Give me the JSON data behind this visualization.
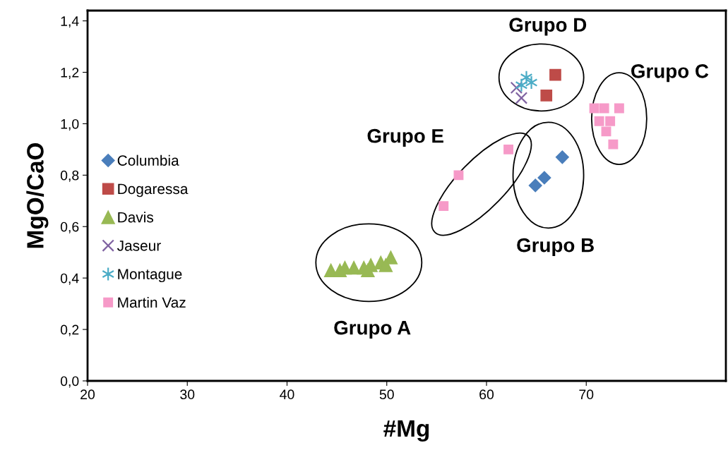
{
  "chart_data": {
    "type": "scatter",
    "xlabel": "#Mg",
    "ylabel": "MgO/CaO",
    "xlim": [
      20,
      84
    ],
    "ylim": [
      0,
      1.44
    ],
    "xticks": [
      20,
      30,
      40,
      50,
      60,
      70
    ],
    "yticks": [
      {
        "value": 0,
        "label": "0,0"
      },
      {
        "value": 0.2,
        "label": "0,2"
      },
      {
        "value": 0.4,
        "label": "0,4"
      },
      {
        "value": 0.6,
        "label": "0,6"
      },
      {
        "value": 0.8,
        "label": "0,8"
      },
      {
        "value": 1.0,
        "label": "1,0"
      },
      {
        "value": 1.2,
        "label": "1,2"
      },
      {
        "value": 1.4,
        "label": "1,4"
      }
    ],
    "grid": false,
    "legend": "left",
    "series": [
      {
        "name": "Columbia",
        "color": "#4a7ebb",
        "marker": "diamond",
        "x": [
          64.9,
          65.8,
          67.6
        ],
        "values": [
          0.76,
          0.79,
          0.87
        ]
      },
      {
        "name": "Dogaressa",
        "color": "#be4b48",
        "marker": "square",
        "x": [
          66.9,
          66.0
        ],
        "values": [
          1.19,
          1.11
        ]
      },
      {
        "name": "Davis",
        "color": "#98b954",
        "marker": "triangle",
        "x": [
          44.4,
          45.3,
          45.8,
          46.7,
          47.7,
          48.4,
          49.4,
          50.4,
          48.1,
          49.9
        ],
        "values": [
          0.43,
          0.43,
          0.44,
          0.44,
          0.44,
          0.45,
          0.46,
          0.48,
          0.43,
          0.45
        ]
      },
      {
        "name": "Jaseur",
        "color": "#7f62a1",
        "marker": "cross",
        "x": [
          63.0,
          63.5
        ],
        "values": [
          1.14,
          1.1
        ]
      },
      {
        "name": "Montague",
        "color": "#4bacc6",
        "marker": "cross",
        "x": [
          64.0,
          64.5,
          63.5
        ],
        "values": [
          1.18,
          1.16,
          1.15
        ]
      },
      {
        "name": "Martin Vaz",
        "color": "#f69ac8",
        "marker": "square",
        "x": [
          55.7,
          57.2,
          62.2,
          70.8,
          71.8,
          73.3,
          71.3,
          72.4,
          72.0,
          72.7
        ],
        "values": [
          0.68,
          0.8,
          0.9,
          1.06,
          1.06,
          1.06,
          1.01,
          1.01,
          0.97,
          0.92
        ]
      }
    ],
    "annotations": [
      "Grupo A",
      "Grupo B",
      "Grupo C",
      "Grupo D",
      "Grupo E"
    ]
  }
}
